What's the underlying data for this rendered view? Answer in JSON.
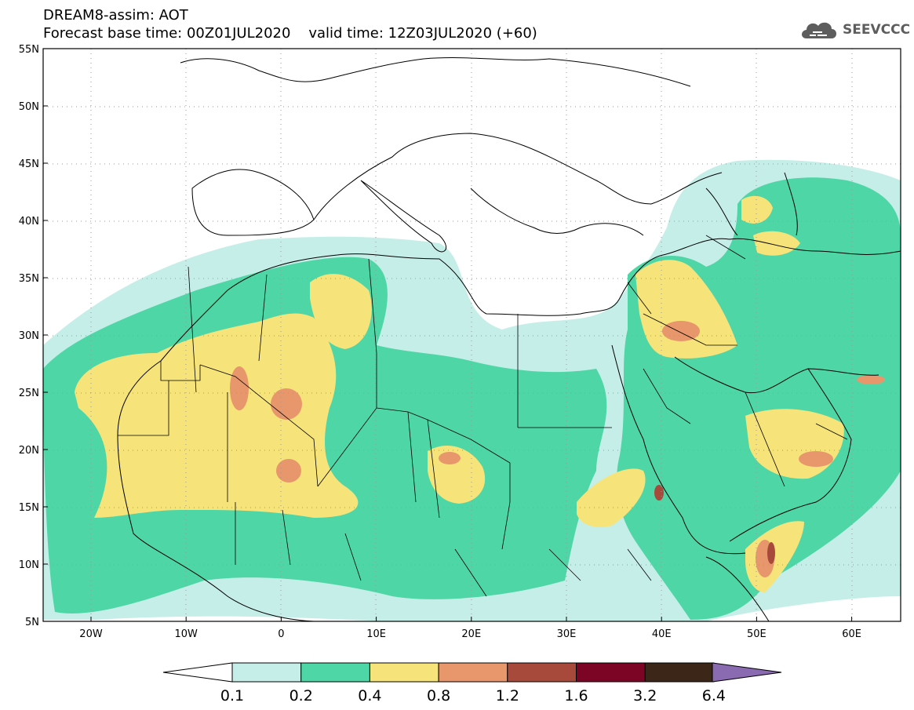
{
  "header": {
    "line1": "DREAM8-assim: AOT",
    "base_label": "Forecast base time: 00Z01JUL2020",
    "valid_label": "valid time: 12Z03JUL2020 (+60)"
  },
  "logo": {
    "text": "SEEVCCC",
    "icon": "cloud-icon"
  },
  "axes": {
    "lat_labels": [
      "55N",
      "50N",
      "45N",
      "40N",
      "35N",
      "30N",
      "25N",
      "20N",
      "15N",
      "10N",
      "5N"
    ],
    "lon_labels": [
      "20W",
      "10W",
      "0",
      "10E",
      "20E",
      "30E",
      "40E",
      "50E",
      "60E"
    ]
  },
  "colorbar": {
    "ticks": [
      "0.1",
      "0.2",
      "0.4",
      "0.8",
      "1.2",
      "1.6",
      "3.2",
      "6.4"
    ],
    "colors": [
      "#c6eee8",
      "#4fd6a6",
      "#f6e37a",
      "#e8966b",
      "#a84a3b",
      "#7c0424",
      "#3b2618",
      "#8a6bb1"
    ],
    "under_color": "#ffffff"
  },
  "map": {
    "land_border_color": "#000000",
    "grid_style": "dotted"
  }
}
